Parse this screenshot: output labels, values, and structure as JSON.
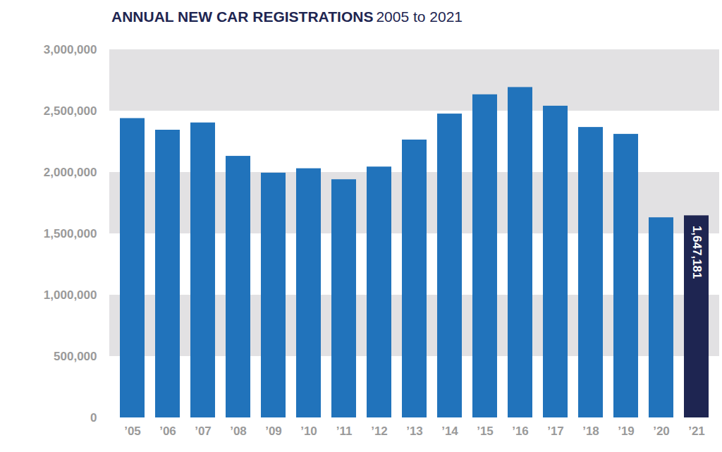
{
  "chart_data": {
    "type": "bar",
    "title": "ANNUAL NEW CAR REGISTRATIONS",
    "subtitle": "2005 to 2021",
    "categories": [
      "’05",
      "’06",
      "’07",
      "’08",
      "’09",
      "’10",
      "’11",
      "’12",
      "’13",
      "’14",
      "’15",
      "’16",
      "’17",
      "’18",
      "’19",
      "’20",
      "’21"
    ],
    "values": [
      2439717,
      2344864,
      2404007,
      2131795,
      1994999,
      2030846,
      1941253,
      2044609,
      2264737,
      2476435,
      2633503,
      2692786,
      2540617,
      2367147,
      2311140,
      1631064,
      1647181
    ],
    "value_labels": [
      null,
      null,
      null,
      null,
      null,
      null,
      null,
      null,
      null,
      null,
      null,
      null,
      null,
      null,
      null,
      null,
      "1,647,181"
    ],
    "data_labels": true,
    "colors": [
      "#2173bb",
      "#2173bb",
      "#2173bb",
      "#2173bb",
      "#2173bb",
      "#2173bb",
      "#2173bb",
      "#2173bb",
      "#2173bb",
      "#2173bb",
      "#2173bb",
      "#2173bb",
      "#2173bb",
      "#2173bb",
      "#2173bb",
      "#2173bb",
      "#1e2551"
    ],
    "ylim": [
      0,
      3000000
    ],
    "yticks": [
      0,
      {
        "value": 500000,
        "label": "500,000"
      },
      {
        "value": 1000000,
        "label": "1,000,000"
      },
      {
        "value": 1500000,
        "label": "1,500,000"
      },
      {
        "value": 2000000,
        "label": "2,000,000"
      },
      {
        "value": 2500000,
        "label": "2,500,000"
      },
      {
        "value": 3000000,
        "label": "3,000,000"
      }
    ],
    "grid": true
  }
}
